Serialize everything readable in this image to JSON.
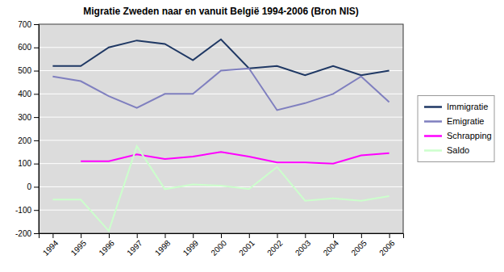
{
  "chart_data": {
    "type": "line",
    "title": "Migratie Zweden naar en vanuit België 1994-2006 (Bron NIS)",
    "x": [
      1994,
      1995,
      1996,
      1997,
      1998,
      1999,
      2000,
      2001,
      2002,
      2003,
      2004,
      2005,
      2006
    ],
    "xlim": [
      1993.5,
      2006.5
    ],
    "xticks": [
      1994,
      1995,
      1996,
      1997,
      1998,
      1999,
      2000,
      2001,
      2002,
      2003,
      2004,
      2005,
      2006
    ],
    "ylim": [
      -200,
      700
    ],
    "yticks": [
      -200,
      -100,
      0,
      100,
      200,
      300,
      400,
      500,
      600,
      700
    ],
    "grid": "y",
    "legend": "right",
    "series": [
      {
        "name": "Immigratie",
        "color": "#1F3864",
        "values": [
          520,
          520,
          600,
          630,
          615,
          545,
          635,
          510,
          520,
          480,
          520,
          480,
          500
        ]
      },
      {
        "name": "Emigratie",
        "color": "#7F7FBF",
        "values": [
          475,
          455,
          390,
          340,
          400,
          400,
          500,
          510,
          330,
          360,
          400,
          475,
          365
        ]
      },
      {
        "name": "Schrapping",
        "color": "#FF00FF",
        "values": [
          null,
          110,
          110,
          140,
          120,
          130,
          150,
          130,
          105,
          105,
          100,
          135,
          145
        ]
      },
      {
        "name": "Saldo",
        "color": "#CCFFCC",
        "values": [
          -55,
          -55,
          -190,
          175,
          -10,
          10,
          5,
          -10,
          85,
          -60,
          -50,
          -60,
          -40
        ]
      }
    ]
  }
}
